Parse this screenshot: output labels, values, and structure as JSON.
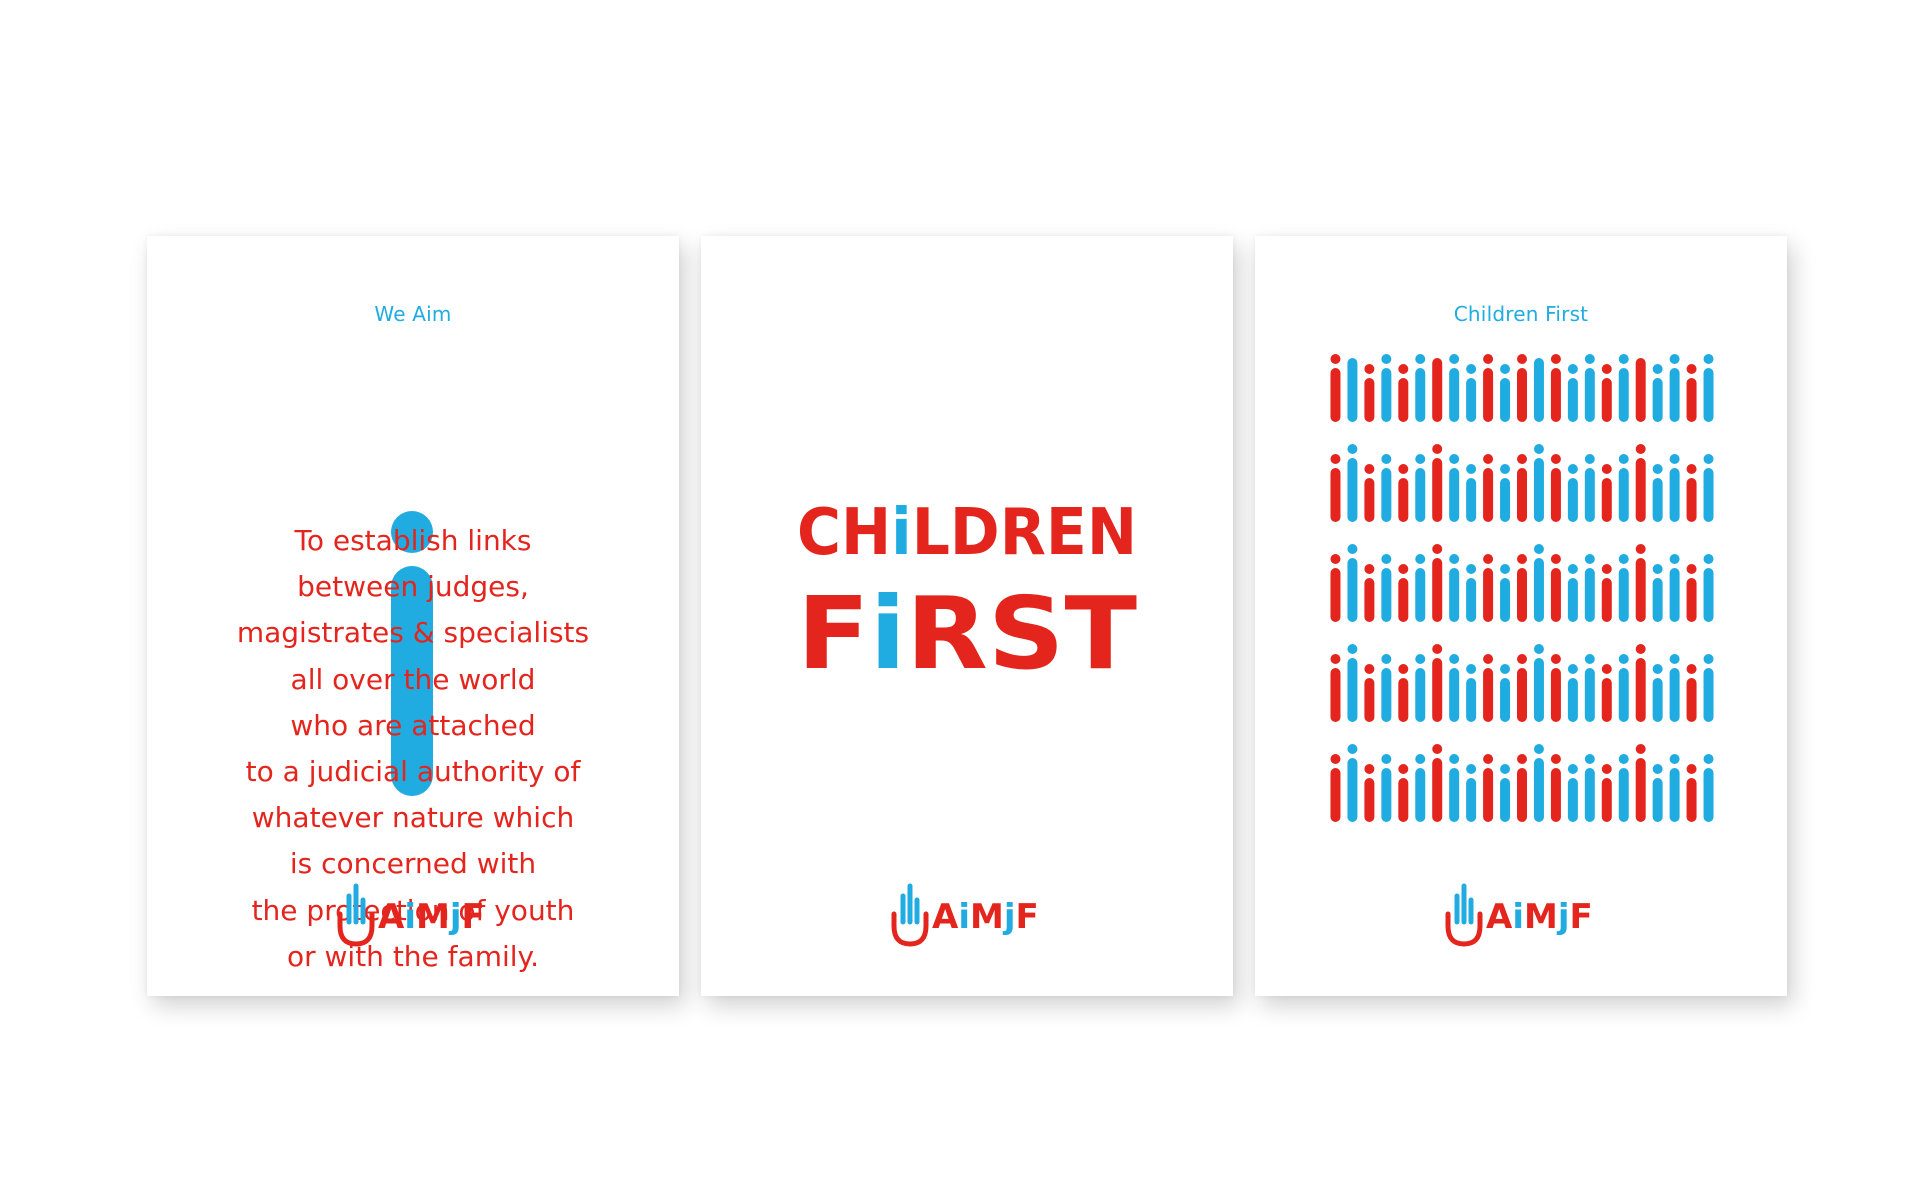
{
  "posters": [
    {
      "heading": "We Aim",
      "lines": [
        "To establish links",
        "between judges,",
        "magistrates & specialists",
        "all over the world",
        "who are attached",
        "to a judicial authority of",
        "whatever nature which",
        "is concerned with",
        "the protection of youth",
        "or with the family."
      ]
    },
    {
      "title_line_1": {
        "a": "CH",
        "i": "i",
        "b": "LDREN"
      },
      "title_line_2": {
        "a": "F",
        "i": "i",
        "b": "RST"
      }
    },
    {
      "heading": "Children First"
    }
  ],
  "logo": {
    "parts": [
      "A",
      "i",
      "M",
      "j",
      "F"
    ]
  },
  "colors": {
    "red": "#e3251e",
    "blue": "#20ace0"
  },
  "icons": [
    "hand-logo-icon",
    "letter-i-icon"
  ]
}
